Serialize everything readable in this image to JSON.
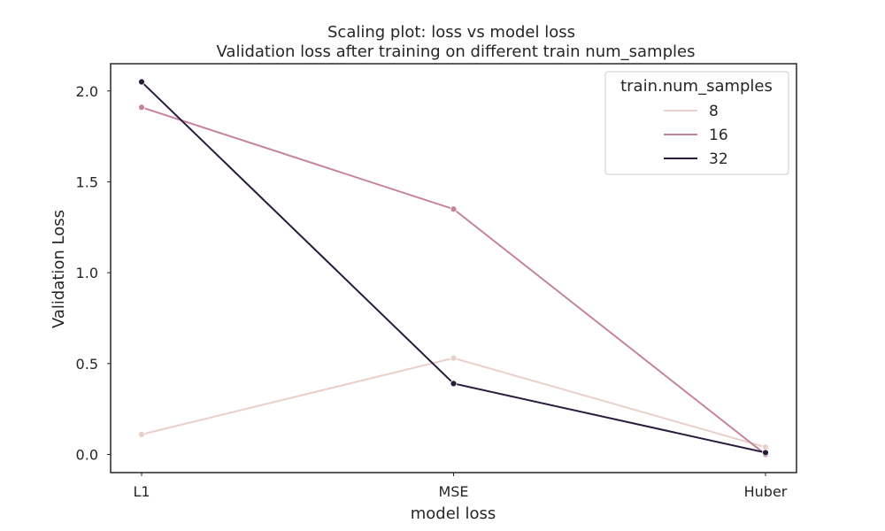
{
  "chart_data": {
    "type": "line",
    "title": "Scaling plot: loss vs model loss",
    "subtitle": "Validation loss after training on different train num_samples",
    "xlabel": "model loss",
    "ylabel": "Validation Loss",
    "categories": [
      "L1",
      "MSE",
      "Huber"
    ],
    "yticks": [
      "0.0",
      "0.5",
      "1.0",
      "1.5",
      "2.0"
    ],
    "ylim": [
      -0.1,
      2.15
    ],
    "grid": false,
    "legend": {
      "title": "train.num_samples",
      "placement": "top-right"
    },
    "series": [
      {
        "name": "8",
        "color": "#eacfc9",
        "values": [
          0.11,
          0.53,
          0.04
        ]
      },
      {
        "name": "16",
        "color": "#c5839c",
        "values": [
          1.91,
          1.35,
          0.0
        ]
      },
      {
        "name": "32",
        "color": "#2a1b3d",
        "values": [
          2.05,
          0.39,
          0.01
        ]
      }
    ]
  }
}
